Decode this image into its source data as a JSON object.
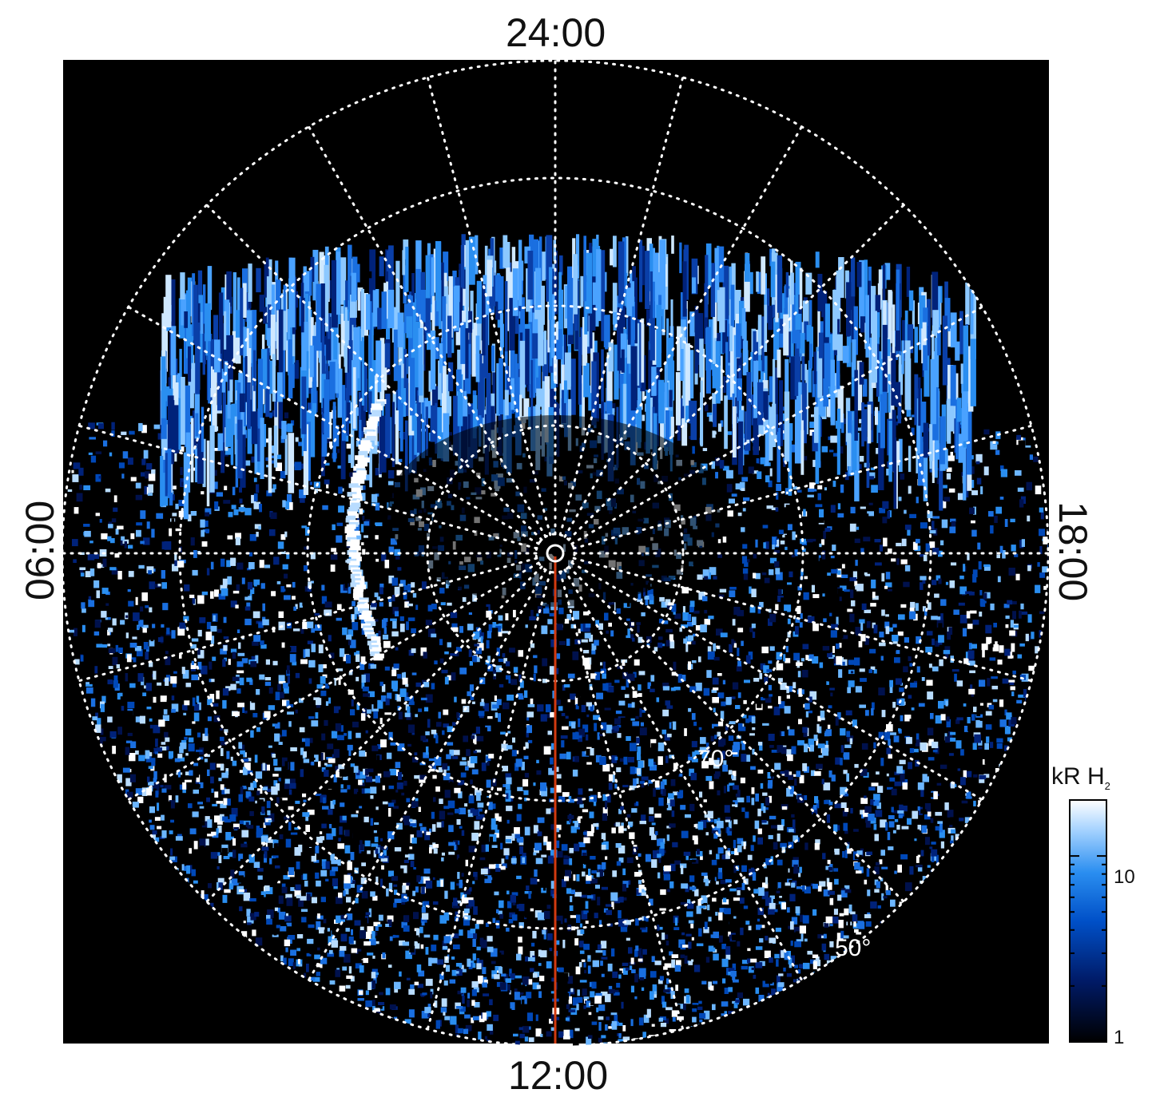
{
  "labels": {
    "top": "24:00",
    "bottom": "12:00",
    "left": "06:00",
    "right": "18:00"
  },
  "grid_labels": {
    "lat70": "70°",
    "lat50": "50°"
  },
  "colorbar": {
    "title_main": "kR H",
    "title_sub": "2",
    "ticks": [
      "10",
      "1"
    ],
    "scale": "log",
    "range": [
      1,
      20
    ],
    "colors": [
      "#000000",
      "#001a66",
      "#0050c8",
      "#2a8ef0",
      "#a8d4ff",
      "#ffffff"
    ]
  },
  "colors": {
    "background": "#000000",
    "grid": "#ffffff",
    "meridian": "#d23a10"
  }
}
